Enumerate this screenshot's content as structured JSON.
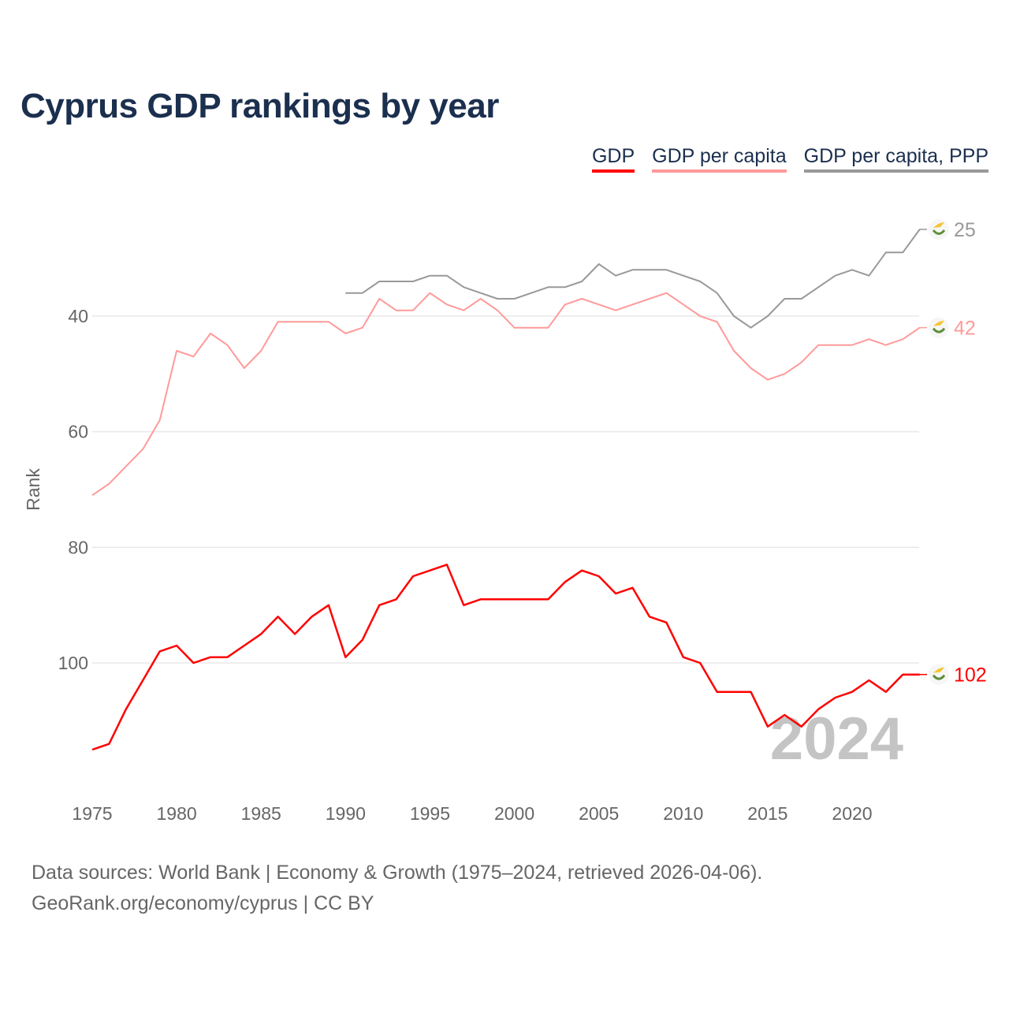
{
  "chart_data": {
    "type": "line",
    "title": "Cyprus GDP rankings by year",
    "xlabel": "",
    "ylabel": "Rank",
    "xlim": [
      1975,
      2024
    ],
    "ylim_inverted": [
      25,
      115
    ],
    "y_ticks": [
      40,
      60,
      80,
      100
    ],
    "x_ticks": [
      1975,
      1980,
      1985,
      1990,
      1995,
      2000,
      2005,
      2010,
      2015,
      2020
    ],
    "grid": "horizontal",
    "legend_position": "top-right",
    "watermark_year": "2024",
    "series": [
      {
        "name": "GDP",
        "color": "#ff0000",
        "end_label": "102",
        "start_year": 1975,
        "values": [
          115,
          114,
          108,
          103,
          98,
          97,
          100,
          99,
          99,
          97,
          95,
          92,
          95,
          92,
          90,
          99,
          96,
          90,
          89,
          85,
          84,
          83,
          90,
          89,
          89,
          89,
          89,
          89,
          86,
          84,
          85,
          88,
          87,
          92,
          93,
          99,
          100,
          105,
          105,
          105,
          111,
          109,
          111,
          108,
          106,
          105,
          103,
          105,
          102,
          102
        ]
      },
      {
        "name": "GDP per capita",
        "color": "#ff9a9a",
        "end_label": "42",
        "start_year": 1975,
        "values": [
          71,
          69,
          66,
          63,
          58,
          46,
          47,
          43,
          45,
          49,
          46,
          41,
          41,
          41,
          41,
          43,
          42,
          37,
          39,
          39,
          36,
          38,
          39,
          37,
          39,
          42,
          42,
          42,
          38,
          37,
          38,
          39,
          38,
          37,
          36,
          38,
          40,
          41,
          46,
          49,
          51,
          50,
          48,
          45,
          45,
          45,
          44,
          45,
          44,
          42
        ]
      },
      {
        "name": "GDP per capita, PPP",
        "color": "#999999",
        "end_label": "25",
        "start_year": 1990,
        "values": [
          36,
          36,
          34,
          34,
          34,
          33,
          33,
          35,
          36,
          37,
          37,
          36,
          35,
          35,
          34,
          31,
          33,
          32,
          32,
          32,
          33,
          34,
          36,
          40,
          42,
          40,
          37,
          37,
          35,
          33,
          32,
          33,
          29,
          29,
          25
        ]
      }
    ]
  },
  "source": {
    "line1": "Data sources: World Bank | Economy & Growth (1975–2024, retrieved 2026-04-06).",
    "line2": "GeoRank.org/economy/cyprus | CC BY"
  }
}
